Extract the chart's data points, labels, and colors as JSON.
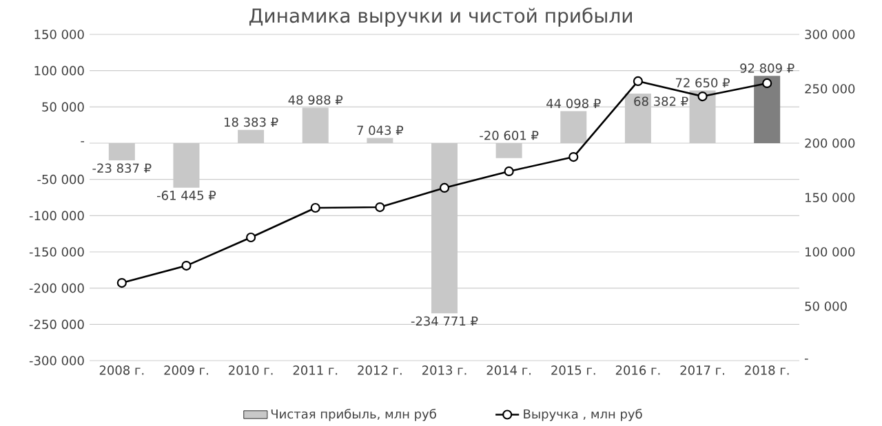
{
  "chart_data": {
    "type": "bar",
    "title": "Динамика выручки и чистой прибыли",
    "categories": [
      "2008 г.",
      "2009 г.",
      "2010 г.",
      "2011 г.",
      "2012 г.",
      "2013 г.",
      "2014 г.",
      "2015 г.",
      "2016 г.",
      "2017 г.",
      "2018 г."
    ],
    "series": [
      {
        "name": "Чистая прибыль, млн руб",
        "colors": [
          "#c8c8c8",
          "#c8c8c8",
          "#c8c8c8",
          "#c8c8c8",
          "#c8c8c8",
          "#c8c8c8",
          "#c8c8c8",
          "#c8c8c8",
          "#c8c8c8",
          "#c8c8c8",
          "#7f7f7f"
        ],
        "values": [
          -23837,
          -61445,
          18383,
          48988,
          7043,
          -234771,
          -20601,
          44098,
          68382,
          72650,
          92809
        ],
        "value_labels": [
          "-23 837 ₽",
          "-61 445 ₽",
          "18 383 ₽",
          "48 988 ₽",
          "7 043 ₽",
          "-234 771 ₽",
          "-20 601 ₽",
          "44 098 ₽",
          "68 382 ₽",
          "72 650 ₽",
          "92 809 ₽"
        ]
      },
      {
        "name": "Выручка , млн руб",
        "type": "line",
        "axis": "y2",
        "color": "#000000",
        "marker": "circle",
        "values": [
          71500,
          87300,
          113300,
          140500,
          141100,
          158900,
          174100,
          187300,
          257000,
          243000,
          255100
        ]
      }
    ],
    "ylim": [
      -300000,
      150000
    ],
    "yticks": [
      {
        "value": -300000,
        "label": "-300 000"
      },
      {
        "value": -250000,
        "label": "-250 000"
      },
      {
        "value": -200000,
        "label": "-200 000"
      },
      {
        "value": -150000,
        "label": "-150 000"
      },
      {
        "value": -100000,
        "label": "-100 000"
      },
      {
        "value": -50000,
        "label": "-50 000"
      },
      {
        "value": 0,
        "label": "-"
      },
      {
        "value": 50000,
        "label": "50 000"
      },
      {
        "value": 100000,
        "label": "100 000"
      },
      {
        "value": 150000,
        "label": "150 000"
      }
    ],
    "y2lim": [
      0,
      300000
    ],
    "y2ticks": [
      {
        "value": 0,
        "label": "-"
      },
      {
        "value": 50000,
        "label": "50 000"
      },
      {
        "value": 100000,
        "label": "100 000"
      },
      {
        "value": 150000,
        "label": "150 000"
      },
      {
        "value": 200000,
        "label": "200 000"
      },
      {
        "value": 250000,
        "label": "250 000"
      },
      {
        "value": 300000,
        "label": "300 000"
      }
    ],
    "grid": "y",
    "legend": "bottom"
  }
}
